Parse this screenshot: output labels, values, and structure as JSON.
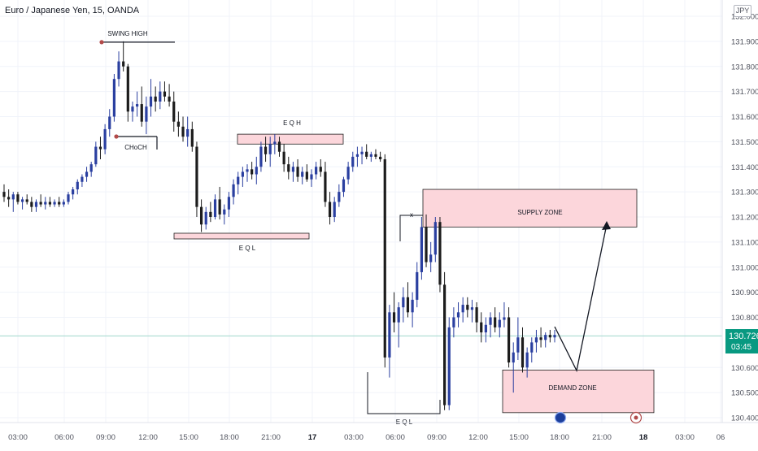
{
  "header": {
    "title": "Euro / Japanese Yen, 15, OANDA",
    "currency": "JPY"
  },
  "price_tag": {
    "price": "130.726",
    "countdown": "03:45"
  },
  "colors": {
    "up": "#2a3fa0",
    "down": "#1c1c1c",
    "zone_fill": "#fcd6db",
    "zone_border": "#202020",
    "current_price_line": "#9fd8cc",
    "tag": "#089981",
    "grid": "#f0f3fa",
    "swing_dot": "#b34a4a"
  },
  "icons": [
    "event-icon-blue",
    "event-icon-red"
  ],
  "chart_data": {
    "type": "candlestick",
    "title": "Euro / Japanese Yen, 15, OANDA",
    "ylim": [
      130.4,
      132.0
    ],
    "y_ticks": [
      "132.000",
      "131.900",
      "131.800",
      "131.700",
      "131.600",
      "131.500",
      "131.400",
      "131.300",
      "131.200",
      "131.100",
      "131.000",
      "130.900",
      "130.800",
      "130.600",
      "130.500",
      "130.400"
    ],
    "x_ticks": [
      "03:00",
      "06:00",
      "09:00",
      "12:00",
      "15:00",
      "18:00",
      "21:00",
      "17",
      "03:00",
      "06:00",
      "09:00",
      "12:00",
      "15:00",
      "18:00",
      "21:00",
      "18",
      "03:00",
      "06"
    ],
    "x_tick_bold": [
      "17",
      "18"
    ],
    "current_price": 130.726,
    "annotations": {
      "swing_high": "SWING HIGH",
      "choch": "CHoCH",
      "eqh": "E Q H",
      "eql_1": "E Q L",
      "eql_2": "E Q L",
      "supply_zone": "SUPPLY ZONE",
      "demand_zone": "DEMAND ZONE",
      "cross": "x"
    },
    "zones": {
      "eqh": {
        "price_top": 131.53,
        "price_bottom": 131.51
      },
      "eql": {
        "price_top": 131.14,
        "price_bottom": 131.13
      },
      "supply": {
        "price_top": 131.31,
        "price_bottom": 131.16
      },
      "demand": {
        "price_top": 130.59,
        "price_bottom": 130.42
      }
    },
    "levels": {
      "swing_high": 131.9,
      "choch": 131.53,
      "eql_low": 130.42
    },
    "candles": [
      [
        131.3,
        131.33,
        131.26,
        131.28
      ],
      [
        131.28,
        131.31,
        131.24,
        131.27
      ],
      [
        131.27,
        131.3,
        131.22,
        131.29
      ],
      [
        131.29,
        131.3,
        131.25,
        131.26
      ],
      [
        131.26,
        131.28,
        131.23,
        131.27
      ],
      [
        131.27,
        131.29,
        131.25,
        131.26
      ],
      [
        131.26,
        131.28,
        131.22,
        131.24
      ],
      [
        131.24,
        131.27,
        131.22,
        131.26
      ],
      [
        131.26,
        131.29,
        131.24,
        131.25
      ],
      [
        131.25,
        131.28,
        131.23,
        131.26
      ],
      [
        131.26,
        131.28,
        131.24,
        131.25
      ],
      [
        131.25,
        131.27,
        131.24,
        131.26
      ],
      [
        131.26,
        131.28,
        131.24,
        131.25
      ],
      [
        131.25,
        131.27,
        131.24,
        131.26
      ],
      [
        131.26,
        131.3,
        131.25,
        131.29
      ],
      [
        131.29,
        131.32,
        131.27,
        131.31
      ],
      [
        131.31,
        131.35,
        131.29,
        131.34
      ],
      [
        131.34,
        131.37,
        131.32,
        131.36
      ],
      [
        131.36,
        131.4,
        131.34,
        131.38
      ],
      [
        131.38,
        131.42,
        131.36,
        131.41
      ],
      [
        131.41,
        131.5,
        131.4,
        131.48
      ],
      [
        131.48,
        131.52,
        131.43,
        131.47
      ],
      [
        131.47,
        131.57,
        131.45,
        131.55
      ],
      [
        131.55,
        131.63,
        131.52,
        131.6
      ],
      [
        131.6,
        131.77,
        131.58,
        131.75
      ],
      [
        131.75,
        131.86,
        131.72,
        131.82
      ],
      [
        131.82,
        131.9,
        131.78,
        131.8
      ],
      [
        131.8,
        131.81,
        131.58,
        131.62
      ],
      [
        131.62,
        131.66,
        131.58,
        131.64
      ],
      [
        131.64,
        131.7,
        131.6,
        131.65
      ],
      [
        131.65,
        131.72,
        131.56,
        131.58
      ],
      [
        131.58,
        131.68,
        131.53,
        131.64
      ],
      [
        131.64,
        131.75,
        131.6,
        131.68
      ],
      [
        131.68,
        131.72,
        131.62,
        131.66
      ],
      [
        131.66,
        131.74,
        131.63,
        131.7
      ],
      [
        131.7,
        131.74,
        131.66,
        131.68
      ],
      [
        131.68,
        131.73,
        131.64,
        131.66
      ],
      [
        131.66,
        131.7,
        131.54,
        131.58
      ],
      [
        131.58,
        131.62,
        131.52,
        131.56
      ],
      [
        131.56,
        131.6,
        131.5,
        131.52
      ],
      [
        131.52,
        131.6,
        131.48,
        131.55
      ],
      [
        131.55,
        131.58,
        131.46,
        131.48
      ],
      [
        131.48,
        131.5,
        131.2,
        131.24
      ],
      [
        131.24,
        131.27,
        131.14,
        131.17
      ],
      [
        131.17,
        131.24,
        131.15,
        131.22
      ],
      [
        131.22,
        131.26,
        131.18,
        131.2
      ],
      [
        131.2,
        131.29,
        131.19,
        131.27
      ],
      [
        131.27,
        131.32,
        131.19,
        131.21
      ],
      [
        131.21,
        131.25,
        131.17,
        131.23
      ],
      [
        131.23,
        131.3,
        131.2,
        131.28
      ],
      [
        131.28,
        131.35,
        131.25,
        131.33
      ],
      [
        131.33,
        131.38,
        131.29,
        131.36
      ],
      [
        131.36,
        131.4,
        131.32,
        131.38
      ],
      [
        131.38,
        131.41,
        131.34,
        131.39
      ],
      [
        131.39,
        131.42,
        131.35,
        131.37
      ],
      [
        131.37,
        131.44,
        131.33,
        131.4
      ],
      [
        131.4,
        131.5,
        131.38,
        131.48
      ],
      [
        131.48,
        131.52,
        131.42,
        131.45
      ],
      [
        131.45,
        131.52,
        131.4,
        131.49
      ],
      [
        131.49,
        131.53,
        131.45,
        131.5
      ],
      [
        131.5,
        131.52,
        131.44,
        131.46
      ],
      [
        131.46,
        131.49,
        131.38,
        131.41
      ],
      [
        131.41,
        131.44,
        131.35,
        131.38
      ],
      [
        131.38,
        131.42,
        131.34,
        131.4
      ],
      [
        131.4,
        131.43,
        131.34,
        131.36
      ],
      [
        131.36,
        131.4,
        131.33,
        131.38
      ],
      [
        131.38,
        131.41,
        131.34,
        131.35
      ],
      [
        131.35,
        131.39,
        131.32,
        131.37
      ],
      [
        131.37,
        131.42,
        131.35,
        131.4
      ],
      [
        131.4,
        131.43,
        131.36,
        131.38
      ],
      [
        131.38,
        131.42,
        131.24,
        131.26
      ],
      [
        131.26,
        131.3,
        131.17,
        131.2
      ],
      [
        131.2,
        131.28,
        131.18,
        131.26
      ],
      [
        131.26,
        131.33,
        131.24,
        131.3
      ],
      [
        131.3,
        131.36,
        131.28,
        131.35
      ],
      [
        131.35,
        131.42,
        131.33,
        131.4
      ],
      [
        131.4,
        131.46,
        131.38,
        131.44
      ],
      [
        131.44,
        131.48,
        131.4,
        131.45
      ],
      [
        131.45,
        131.48,
        131.41,
        131.46
      ],
      [
        131.46,
        131.49,
        131.43,
        131.44
      ],
      [
        131.44,
        131.46,
        131.42,
        131.45
      ],
      [
        131.45,
        131.47,
        131.43,
        131.44
      ],
      [
        131.44,
        131.46,
        131.42,
        131.43
      ],
      [
        131.43,
        131.45,
        130.6,
        130.64
      ],
      [
        130.64,
        130.85,
        130.56,
        130.82
      ],
      [
        130.82,
        130.9,
        130.74,
        130.78
      ],
      [
        130.78,
        130.86,
        130.68,
        130.84
      ],
      [
        130.84,
        130.92,
        130.78,
        130.88
      ],
      [
        130.88,
        130.94,
        130.8,
        130.82
      ],
      [
        130.82,
        130.9,
        130.76,
        130.87
      ],
      [
        130.87,
        131.02,
        130.84,
        130.98
      ],
      [
        130.98,
        131.2,
        130.95,
        131.16
      ],
      [
        131.16,
        131.21,
        131.0,
        131.02
      ],
      [
        131.02,
        131.1,
        130.98,
        131.05
      ],
      [
        131.05,
        131.2,
        131.02,
        131.18
      ],
      [
        131.18,
        131.2,
        130.9,
        130.93
      ],
      [
        130.93,
        130.98,
        130.43,
        130.45
      ],
      [
        130.45,
        130.8,
        130.43,
        130.76
      ],
      [
        130.76,
        130.84,
        130.72,
        130.8
      ],
      [
        130.8,
        130.86,
        130.76,
        130.82
      ],
      [
        130.82,
        130.88,
        130.78,
        130.85
      ],
      [
        130.85,
        130.88,
        130.8,
        130.83
      ],
      [
        130.83,
        130.87,
        130.78,
        130.84
      ],
      [
        130.84,
        130.86,
        130.74,
        130.78
      ],
      [
        130.78,
        130.82,
        130.7,
        130.74
      ],
      [
        130.74,
        130.8,
        130.7,
        130.77
      ],
      [
        130.77,
        130.82,
        130.72,
        130.8
      ],
      [
        130.8,
        130.84,
        130.74,
        130.76
      ],
      [
        130.76,
        130.82,
        130.72,
        130.79
      ],
      [
        130.79,
        130.86,
        130.76,
        130.8
      ],
      [
        130.8,
        130.84,
        130.6,
        130.62
      ],
      [
        130.62,
        130.7,
        130.5,
        130.66
      ],
      [
        130.66,
        130.8,
        130.63,
        130.72
      ],
      [
        130.72,
        130.76,
        130.58,
        130.6
      ],
      [
        130.6,
        130.68,
        130.56,
        130.66
      ],
      [
        130.66,
        130.72,
        130.62,
        130.7
      ],
      [
        130.7,
        130.75,
        130.66,
        130.72
      ],
      [
        130.72,
        130.76,
        130.68,
        130.71
      ],
      [
        130.71,
        130.74,
        130.68,
        130.73
      ],
      [
        130.73,
        130.75,
        130.7,
        130.72
      ],
      [
        130.72,
        130.75,
        130.7,
        130.73
      ]
    ]
  }
}
